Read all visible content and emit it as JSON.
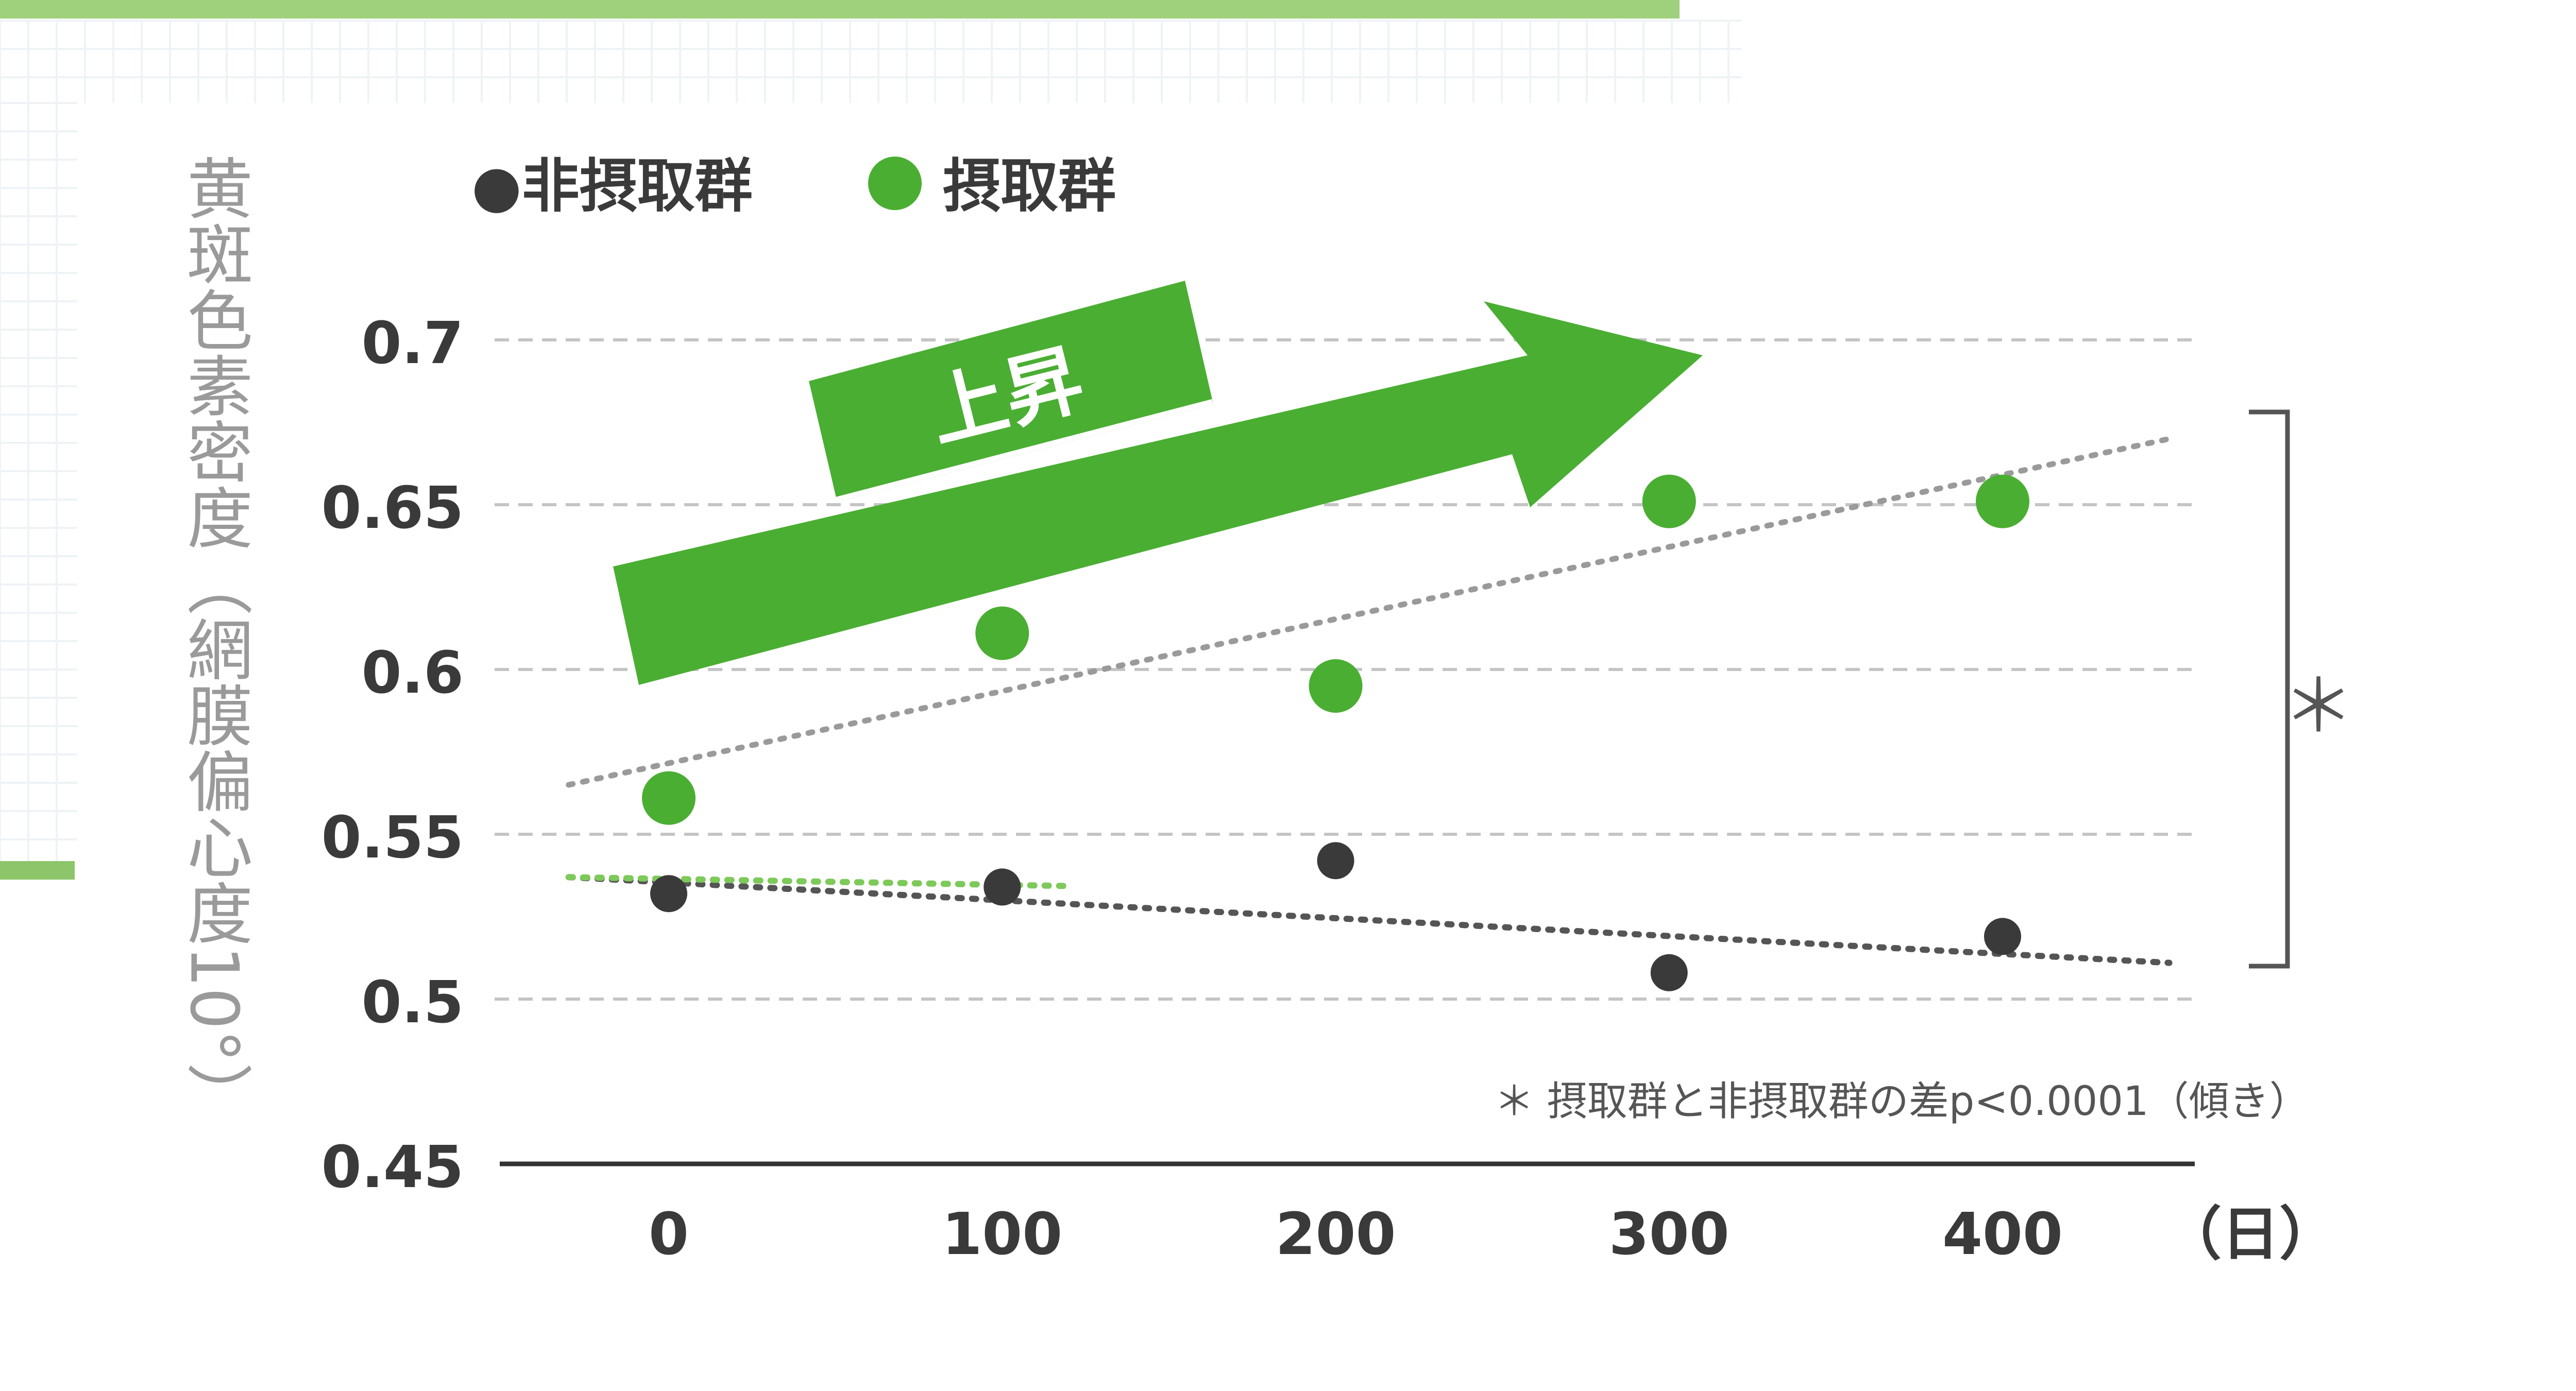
{
  "legend": [
    {
      "label": "●非摂取群",
      "color": "#3a3a3a"
    },
    {
      "label": "摂取群",
      "color": "#4aae32"
    }
  ],
  "arrow_label": "上昇",
  "significance_mark": "＊",
  "footnote": "＊ 摂取群と非摂取群の差p<0.0001（傾き）",
  "colors": {
    "accent": "#4aae32",
    "dark": "#3a3a3a",
    "grid": "#c4c4c4",
    "axis": "#333333"
  },
  "chart_data": {
    "type": "scatter",
    "title": "",
    "xlabel": "（日）",
    "ylabel": "黄斑色素密度（網膜偏心度10°）",
    "x_ticks": [
      "0",
      "100",
      "200",
      "300",
      "400"
    ],
    "y_ticks": [
      "0.7",
      "0.65",
      "0.6",
      "0.55",
      "0.5",
      "0.45"
    ],
    "xlim": [
      -50,
      450
    ],
    "ylim": [
      0.45,
      0.72
    ],
    "grid": true,
    "legend_position": "top-left",
    "series": [
      {
        "name": "非摂取群",
        "color": "#3a3a3a",
        "x": [
          0,
          100,
          200,
          300,
          400
        ],
        "y": [
          0.532,
          0.534,
          0.542,
          0.508,
          0.519
        ],
        "trend": {
          "x": [
            -30,
            450
          ],
          "y": [
            0.537,
            0.511
          ]
        }
      },
      {
        "name": "摂取群",
        "color": "#4aae32",
        "x": [
          0,
          100,
          200,
          300,
          400
        ],
        "y": [
          0.561,
          0.611,
          0.595,
          0.651,
          0.651
        ],
        "trend": {
          "x": [
            -30,
            450
          ],
          "y": [
            0.565,
            0.67
          ]
        }
      }
    ]
  }
}
